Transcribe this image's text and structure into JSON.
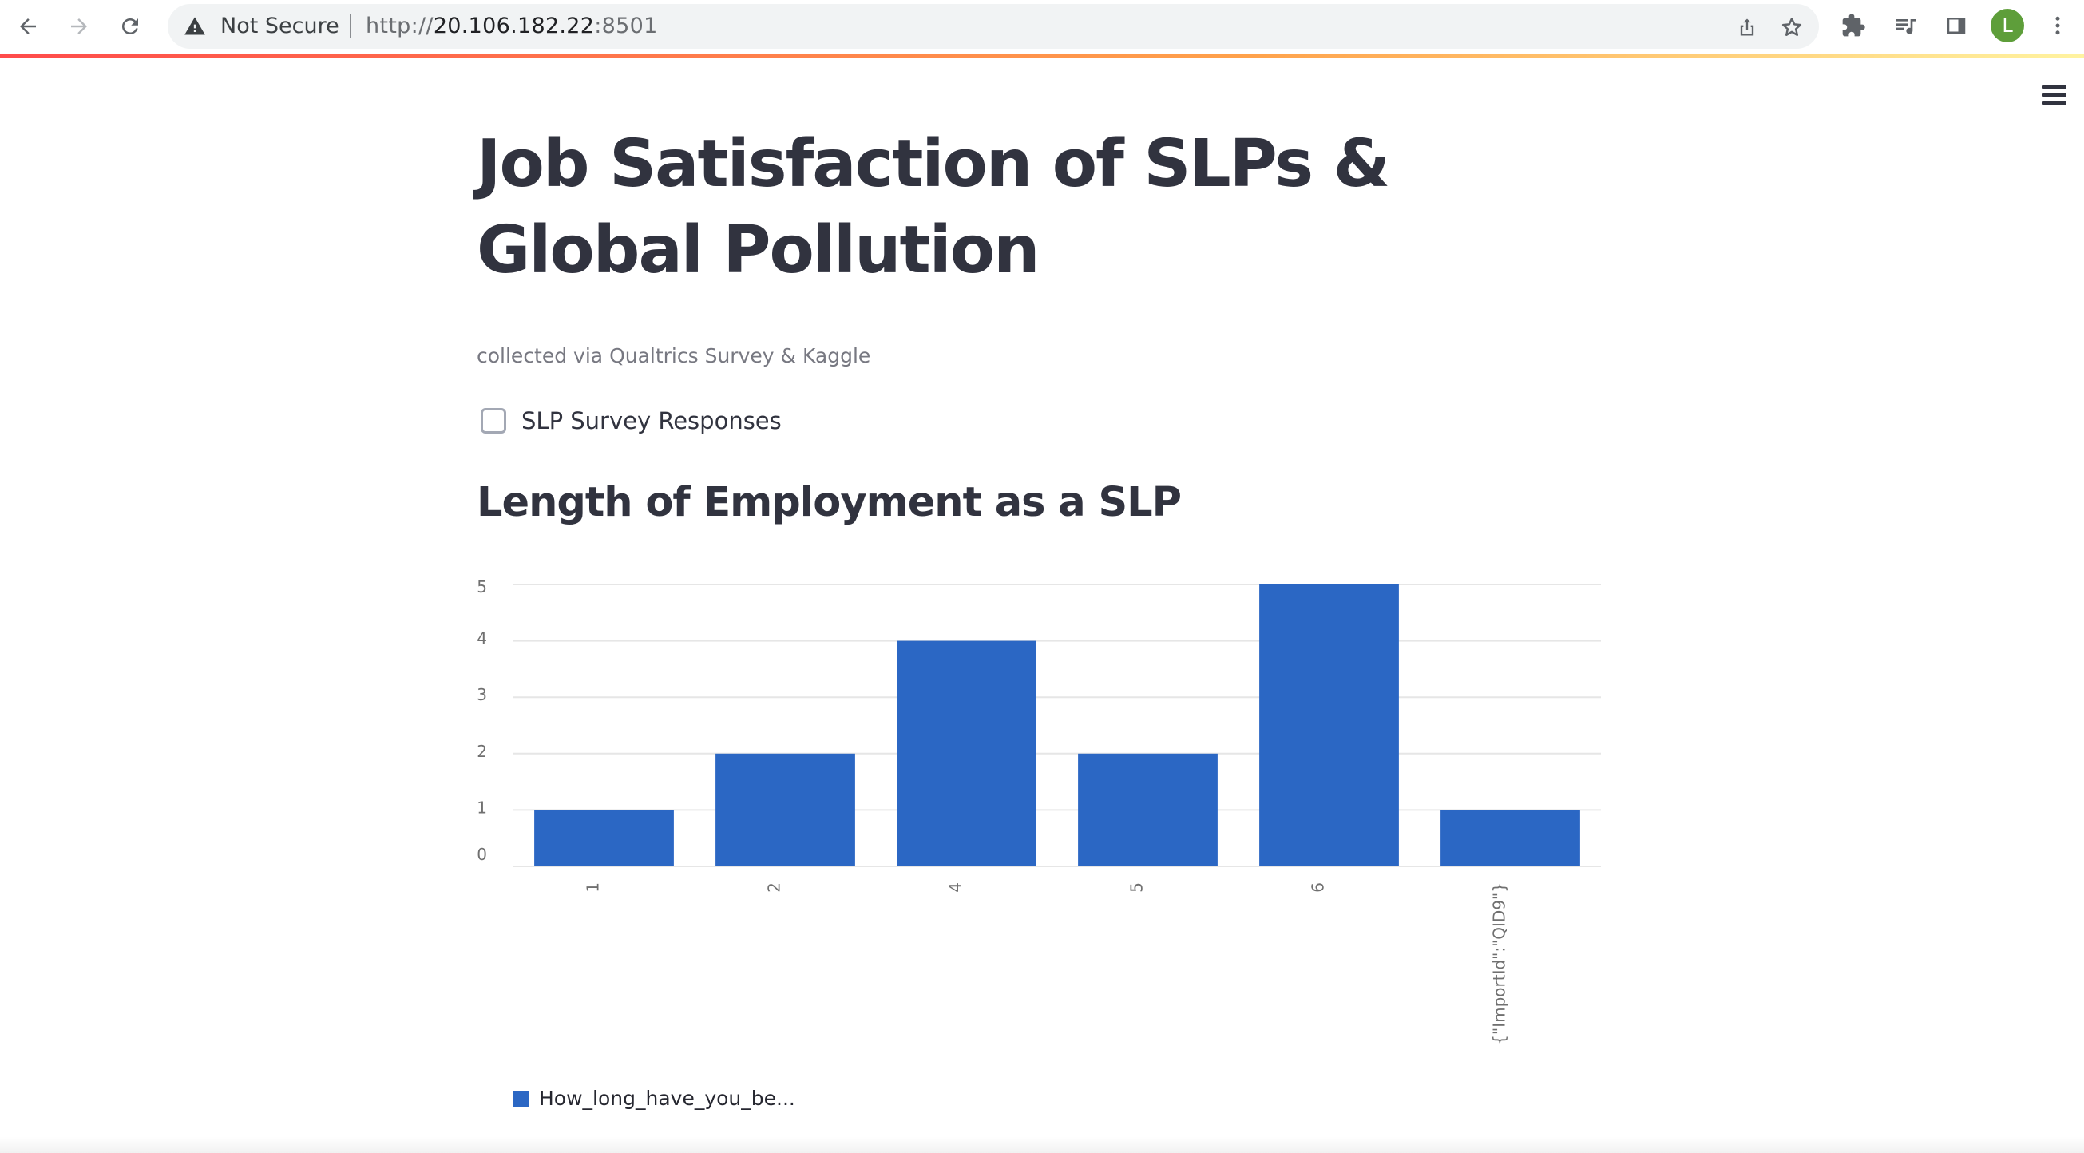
{
  "browser": {
    "security_label": "Not Secure",
    "url_prefix": "http://",
    "url_host": "20.106.182.22",
    "url_port": ":8501",
    "profile_initial": "L",
    "profile_color": "#5e9e3a"
  },
  "app": {
    "title": "Job Satisfaction of SLPs & Global Pollution",
    "caption": "collected via Qualtrics Survey & Kaggle",
    "checkbox_label": "SLP Survey Responses",
    "checkbox_checked": false,
    "section_title": "Length of Employment as a SLP",
    "accent_color": "#ff4b4b"
  },
  "chart_data": {
    "type": "bar",
    "categories": [
      "1",
      "2",
      "4",
      "5",
      "6",
      "{\"ImportId\":\"QID9\"}"
    ],
    "series": [
      {
        "name": "How_long_have_you_be...",
        "values": [
          1,
          2,
          4,
          2,
          5,
          1
        ],
        "color": "#2b67c4"
      }
    ],
    "ylim": [
      0,
      5
    ],
    "yticks": [
      0,
      1,
      2,
      3,
      4,
      5
    ],
    "grid": true,
    "legend_position": "bottom-left"
  }
}
